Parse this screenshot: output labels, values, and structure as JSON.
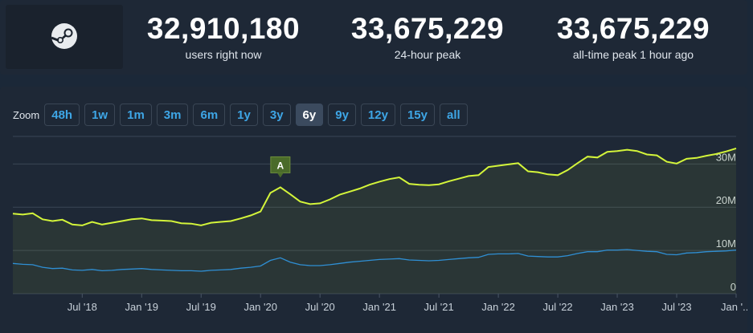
{
  "stats": [
    {
      "value": "32,910,180",
      "label": "users right now"
    },
    {
      "value": "33,675,229",
      "label": "24-hour peak"
    },
    {
      "value": "33,675,229",
      "label": "all-time peak 1 hour ago"
    }
  ],
  "logo_icon": "steam-logo-icon",
  "zoom": {
    "label": "Zoom",
    "options": [
      "48h",
      "1w",
      "1m",
      "3m",
      "6m",
      "1y",
      "3y",
      "6y",
      "9y",
      "12y",
      "15y",
      "all"
    ],
    "selected": "6y"
  },
  "colors": {
    "users_line": "#d4f53a",
    "ingame_line": "#2f8fd4",
    "accent": "#3ea6e6",
    "background": "#1b2838"
  },
  "chart_data": {
    "type": "line",
    "x": [
      "2017-12",
      "2018-01",
      "2018-02",
      "2018-03",
      "2018-04",
      "2018-05",
      "2018-06",
      "2018-07",
      "2018-08",
      "2018-09",
      "2018-10",
      "2018-11",
      "2018-12",
      "2019-01",
      "2019-02",
      "2019-03",
      "2019-04",
      "2019-05",
      "2019-06",
      "2019-07",
      "2019-08",
      "2019-09",
      "2019-10",
      "2019-11",
      "2019-12",
      "2020-01",
      "2020-02",
      "2020-03",
      "2020-04",
      "2020-05",
      "2020-06",
      "2020-07",
      "2020-08",
      "2020-09",
      "2020-10",
      "2020-11",
      "2020-12",
      "2021-01",
      "2021-02",
      "2021-03",
      "2021-04",
      "2021-05",
      "2021-06",
      "2021-07",
      "2021-08",
      "2021-09",
      "2021-10",
      "2021-11",
      "2021-12",
      "2022-01",
      "2022-02",
      "2022-03",
      "2022-04",
      "2022-05",
      "2022-06",
      "2022-07",
      "2022-08",
      "2022-09",
      "2022-10",
      "2022-11",
      "2022-12",
      "2023-01",
      "2023-02",
      "2023-03",
      "2023-04",
      "2023-05",
      "2023-06",
      "2023-07",
      "2023-08",
      "2023-09",
      "2023-10",
      "2023-11",
      "2023-12",
      "2024-01"
    ],
    "series": [
      {
        "values": [
          18.5,
          18.3,
          18.6,
          17.2,
          16.8,
          17.1,
          16.0,
          15.8,
          16.6,
          16.0,
          16.4,
          16.8,
          17.2,
          17.4,
          17.0,
          16.9,
          16.8,
          16.3,
          16.2,
          15.8,
          16.4,
          16.6,
          16.8,
          17.4,
          18.1,
          19.0,
          23.3,
          24.6,
          23.0,
          21.3,
          20.7,
          20.9,
          21.8,
          22.9,
          23.6,
          24.3,
          25.2,
          25.9,
          26.5,
          26.9,
          25.4,
          25.2,
          25.1,
          25.3,
          26.0,
          26.6,
          27.2,
          27.4,
          29.3,
          29.6,
          29.9,
          30.2,
          28.3,
          28.1,
          27.6,
          27.4,
          28.6,
          30.2,
          31.7,
          31.5,
          32.8,
          33.0,
          33.3,
          33.0,
          32.2,
          32.0,
          30.5,
          30.1,
          31.2,
          31.4,
          31.9,
          32.3,
          32.9,
          33.6
        ]
      },
      {
        "values": [
          7.0,
          6.8,
          6.7,
          6.1,
          5.8,
          5.9,
          5.5,
          5.4,
          5.6,
          5.3,
          5.4,
          5.6,
          5.7,
          5.8,
          5.6,
          5.5,
          5.4,
          5.3,
          5.3,
          5.2,
          5.4,
          5.5,
          5.6,
          5.9,
          6.1,
          6.4,
          7.7,
          8.3,
          7.3,
          6.7,
          6.5,
          6.5,
          6.7,
          7.0,
          7.3,
          7.5,
          7.7,
          7.9,
          8.0,
          8.1,
          7.8,
          7.7,
          7.6,
          7.7,
          7.9,
          8.1,
          8.3,
          8.4,
          9.1,
          9.2,
          9.2,
          9.3,
          8.7,
          8.6,
          8.5,
          8.5,
          8.8,
          9.3,
          9.7,
          9.7,
          10.1,
          10.1,
          10.2,
          10.0,
          9.8,
          9.7,
          9.1,
          9.0,
          9.4,
          9.5,
          9.7,
          9.8,
          9.9,
          10.1
        ]
      }
    ],
    "xticks": [
      "Jul '18",
      "Jan '19",
      "Jul '19",
      "Jan '20",
      "Jul '20",
      "Jan '21",
      "Jul '21",
      "Jan '22",
      "Jul '22",
      "Jan '23",
      "Jul '23",
      "Jan '..."
    ],
    "yticks": [
      "0",
      "10M",
      "20M",
      "30M"
    ],
    "ylim": [
      0,
      36
    ],
    "annotation": {
      "label": "A",
      "x": "2020-03"
    },
    "grid": true
  }
}
